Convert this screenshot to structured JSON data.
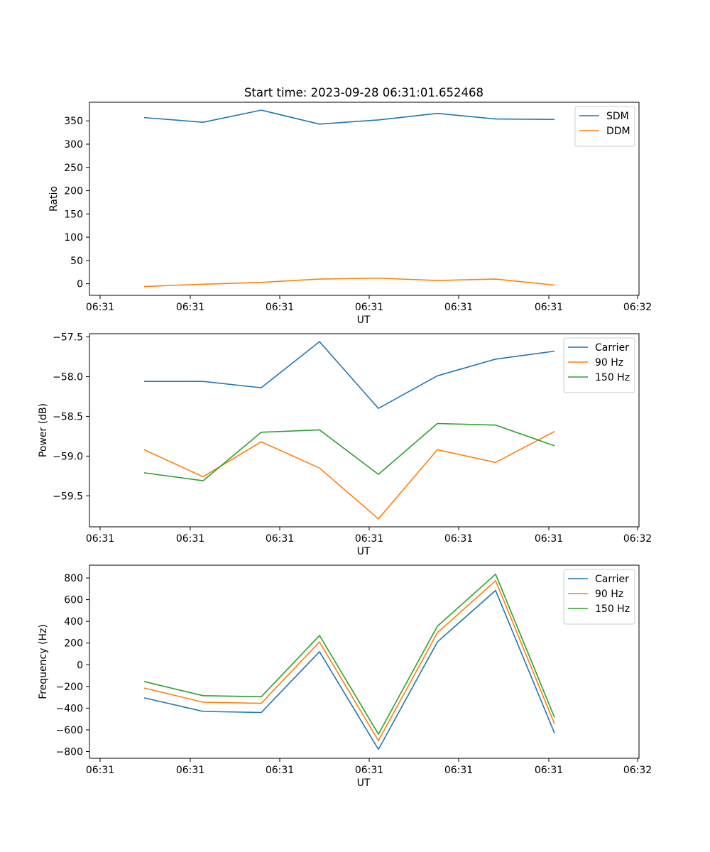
{
  "figure": {
    "title": "Start time: 2023-09-28 06:31:01.652468"
  },
  "chart_data": [
    {
      "type": "line",
      "xlabel": "UT",
      "ylabel": "Ratio",
      "xtick_labels": [
        "06:31",
        "06:31",
        "06:31",
        "06:31",
        "06:31",
        "06:31",
        "06:31"
      ],
      "last_xtick_label": "06:32",
      "ylim": [
        -25,
        390
      ],
      "yticks": [
        0,
        50,
        100,
        150,
        200,
        250,
        300,
        350
      ],
      "legend_position": "upper-right",
      "series": [
        {
          "name": "SDM",
          "color": "#1f77b4",
          "values": [
            357,
            347,
            373,
            343,
            352,
            366,
            354,
            353
          ]
        },
        {
          "name": "DDM",
          "color": "#ff7f0e",
          "values": [
            -6,
            -1,
            3,
            10,
            12,
            7,
            10,
            -3
          ]
        }
      ]
    },
    {
      "type": "line",
      "xlabel": "UT",
      "ylabel": "Power (dB)",
      "xtick_labels": [
        "06:31",
        "06:31",
        "06:31",
        "06:31",
        "06:31",
        "06:31",
        "06:31"
      ],
      "last_xtick_label": "06:32",
      "ylim": [
        -59.89,
        -57.46
      ],
      "yticks": [
        -59.5,
        -59.0,
        -58.5,
        -58.0,
        -57.5
      ],
      "ytick_labels": [
        "−59.5",
        "−59.0",
        "−58.5",
        "−58.0",
        "−57.5"
      ],
      "legend_position": "upper-right",
      "series": [
        {
          "name": "Carrier",
          "color": "#1f77b4",
          "values": [
            -58.06,
            -58.06,
            -58.14,
            -57.56,
            -58.4,
            -57.99,
            -57.78,
            -57.68
          ]
        },
        {
          "name": "90 Hz",
          "color": "#ff7f0e",
          "values": [
            -58.92,
            -59.26,
            -58.82,
            -59.15,
            -59.79,
            -58.92,
            -59.08,
            -58.69
          ]
        },
        {
          "name": "150 Hz",
          "color": "#2ca02c",
          "values": [
            -59.21,
            -59.31,
            -58.7,
            -58.67,
            -59.23,
            -58.59,
            -58.61,
            -58.87
          ]
        }
      ]
    },
    {
      "type": "line",
      "xlabel": "UT",
      "ylabel": "Frequency (Hz)",
      "xtick_labels": [
        "06:31",
        "06:31",
        "06:31",
        "06:31",
        "06:31",
        "06:31",
        "06:31"
      ],
      "last_xtick_label": "06:32",
      "ylim": [
        -862,
        918
      ],
      "yticks": [
        -800,
        -600,
        -400,
        -200,
        0,
        200,
        400,
        600,
        800
      ],
      "ytick_labels": [
        "−800",
        "−600",
        "−400",
        "−200",
        "0",
        "200",
        "400",
        "600",
        "800"
      ],
      "legend_position": "upper-right",
      "series": [
        {
          "name": "Carrier",
          "color": "#1f77b4",
          "values": [
            -305,
            -430,
            -440,
            120,
            -780,
            210,
            685,
            -630
          ]
        },
        {
          "name": "90 Hz",
          "color": "#ff7f0e",
          "values": [
            -215,
            -345,
            -355,
            210,
            -700,
            295,
            775,
            -545
          ]
        },
        {
          "name": "150 Hz",
          "color": "#2ca02c",
          "values": [
            -155,
            -285,
            -295,
            270,
            -640,
            355,
            835,
            -485
          ]
        }
      ]
    }
  ]
}
